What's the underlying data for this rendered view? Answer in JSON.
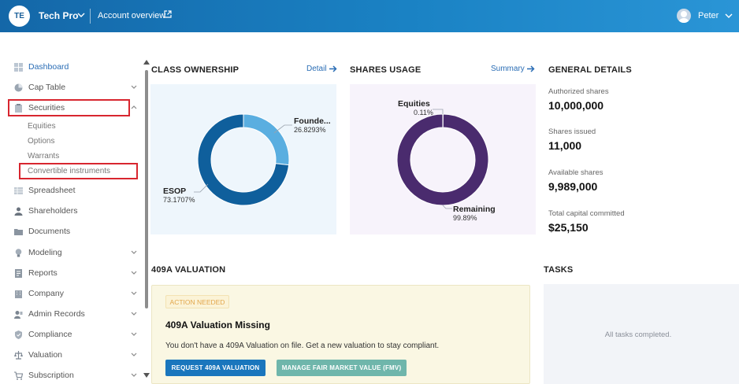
{
  "header": {
    "company_initials": "TE",
    "company_name": "Tech Pro",
    "account_overview": "Account overview",
    "user_name": "Peter"
  },
  "sidebar": {
    "items": [
      {
        "label": "Dashboard",
        "icon": "dashboard-icon",
        "active": true
      },
      {
        "label": "Cap Table",
        "icon": "pie-chart-icon",
        "expandable": true
      },
      {
        "label": "Securities",
        "icon": "clipboard-icon",
        "expanded": true
      },
      {
        "label": "Spreadsheet",
        "icon": "spreadsheet-icon"
      },
      {
        "label": "Shareholders",
        "icon": "person-icon"
      },
      {
        "label": "Documents",
        "icon": "folder-icon"
      },
      {
        "label": "Modeling",
        "icon": "lightbulb-icon",
        "expandable": true
      },
      {
        "label": "Reports",
        "icon": "report-icon",
        "expandable": true
      },
      {
        "label": "Company",
        "icon": "building-icon",
        "expandable": true
      },
      {
        "label": "Admin Records",
        "icon": "admin-icon",
        "expandable": true
      },
      {
        "label": "Compliance",
        "icon": "shield-icon",
        "expandable": true
      },
      {
        "label": "Valuation",
        "icon": "scale-icon",
        "expandable": true
      },
      {
        "label": "Subscription",
        "icon": "cart-icon",
        "expandable": true
      }
    ],
    "securities_sub": [
      "Equities",
      "Options",
      "Warrants",
      "Convertible instruments"
    ]
  },
  "class_ownership": {
    "title": "CLASS OWNERSHIP",
    "link": "Detail",
    "segments": [
      {
        "name": "Founde...",
        "pct_label": "26.8293%",
        "value": 26.8293,
        "color": "#5aaee0"
      },
      {
        "name": "ESOP",
        "pct_label": "73.1707%",
        "value": 73.1707,
        "color": "#0f5f9c"
      }
    ]
  },
  "shares_usage": {
    "title": "SHARES USAGE",
    "link": "Summary",
    "segments": [
      {
        "name": "Equities",
        "pct_label": "0.11%",
        "value": 0.11,
        "color": "#a58bc9"
      },
      {
        "name": "Remaining",
        "pct_label": "99.89%",
        "value": 99.89,
        "color": "#4a2b6e"
      }
    ]
  },
  "general_details": {
    "title": "GENERAL DETAILS",
    "rows": [
      {
        "label": "Authorized shares",
        "value": "10,000,000"
      },
      {
        "label": "Shares issued",
        "value": "11,000"
      },
      {
        "label": "Available shares",
        "value": "9,989,000"
      },
      {
        "label": "Total capital committed",
        "value": "$25,150"
      }
    ]
  },
  "valuation": {
    "title": "409A VALUATION",
    "badge": "ACTION NEEDED",
    "heading": "409A Valuation Missing",
    "description": "You don't have a 409A Valuation on file. Get a new valuation to stay compliant.",
    "primary_button": "REQUEST 409A VALUATION",
    "secondary_button": "MANAGE FAIR MARKET VALUE (FMV)"
  },
  "tasks": {
    "title": "TASKS",
    "empty_text": "All tasks completed."
  },
  "colors": {
    "header_start": "#1467a8",
    "header_end": "#2a95d6",
    "accent": "#2a6db5",
    "highlight_box": "#d8262f"
  }
}
